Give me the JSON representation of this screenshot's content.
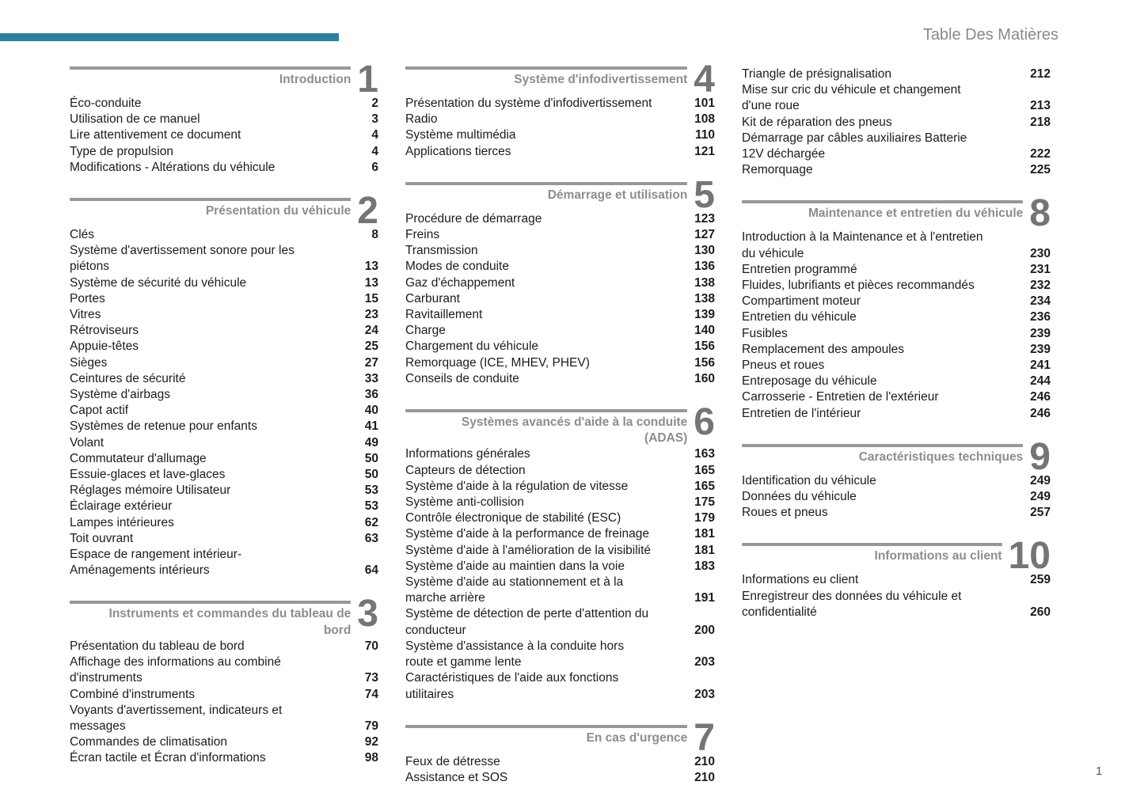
{
  "page": {
    "header_title": "Table Des Matières",
    "page_number": "1",
    "accent_color": "#2d7f9b",
    "section_rule_color": "#989898",
    "section_title_color": "#8d8d8d",
    "text_color": "#1c1c1c"
  },
  "toc": {
    "columns": [
      {
        "blocks": [
          {
            "number": "1",
            "title": "Introduction",
            "entries": [
              {
                "label": "Éco-conduite",
                "page": "2"
              },
              {
                "label": "Utilisation de ce manuel",
                "page": "3"
              },
              {
                "label": "Lire attentivement ce document",
                "page": "4"
              },
              {
                "label": "Type de propulsion",
                "page": "4"
              },
              {
                "label": "Modifications - Altérations du véhicule",
                "page": "6"
              }
            ]
          },
          {
            "number": "2",
            "title": "Présentation du véhicule",
            "entries": [
              {
                "label": "Clés",
                "page": "8"
              },
              {
                "label": "Système d'avertissement sonore pour les\npiétons",
                "page": "13"
              },
              {
                "label": "Système de sécurité du véhicule",
                "page": "13"
              },
              {
                "label": "Portes",
                "page": "15"
              },
              {
                "label": "Vitres",
                "page": "23"
              },
              {
                "label": "Rétroviseurs",
                "page": "24"
              },
              {
                "label": "Appuie-têtes",
                "page": "25"
              },
              {
                "label": "Sièges",
                "page": "27"
              },
              {
                "label": "Ceintures de sécurité",
                "page": "33"
              },
              {
                "label": "Système d'airbags",
                "page": "36"
              },
              {
                "label": "Capot actif",
                "page": "40"
              },
              {
                "label": "Systèmes de retenue pour enfants",
                "page": "41"
              },
              {
                "label": "Volant",
                "page": "49"
              },
              {
                "label": "Commutateur d'allumage",
                "page": "50"
              },
              {
                "label": "Essuie-glaces et lave-glaces",
                "page": "50"
              },
              {
                "label": "Réglages mémoire Utilisateur",
                "page": "53"
              },
              {
                "label": "Éclairage extérieur",
                "page": "53"
              },
              {
                "label": "Lampes intérieures",
                "page": "62"
              },
              {
                "label": "Toit ouvrant",
                "page": "63"
              },
              {
                "label": "Espace de rangement intérieur-\nAménagements intérieurs",
                "page": "64"
              }
            ]
          },
          {
            "number": "3",
            "title": "Instruments et commandes du tableau de\nbord",
            "entries": [
              {
                "label": "Présentation du tableau de bord",
                "page": "70"
              },
              {
                "label": "Affichage des informations au combiné\nd'instruments",
                "page": "73"
              },
              {
                "label": "Combiné d'instruments",
                "page": "74"
              },
              {
                "label": "Voyants d'avertissement, indicateurs et\nmessages",
                "page": "79"
              },
              {
                "label": "Commandes de climatisation",
                "page": "92"
              },
              {
                "label": "Écran tactile et Écran d'informations",
                "page": "98"
              }
            ]
          }
        ]
      },
      {
        "blocks": [
          {
            "number": "4",
            "title": "Système d'infodivertissement",
            "entries": [
              {
                "label": "Présentation du système d'infodivertissement",
                "page": "101"
              },
              {
                "label": "Radio",
                "page": "108"
              },
              {
                "label": "Système multimédia",
                "page": "110"
              },
              {
                "label": "Applications tierces",
                "page": "121"
              }
            ]
          },
          {
            "number": "5",
            "title": "Démarrage et utilisation",
            "entries": [
              {
                "label": "Procédure de démarrage",
                "page": "123"
              },
              {
                "label": "Freins",
                "page": "127"
              },
              {
                "label": "Transmission",
                "page": "130"
              },
              {
                "label": "Modes de conduite",
                "page": "136"
              },
              {
                "label": "Gaz d'échappement",
                "page": "138"
              },
              {
                "label": "Carburant",
                "page": "138"
              },
              {
                "label": "Ravitaillement",
                "page": "139"
              },
              {
                "label": "Charge",
                "page": "140"
              },
              {
                "label": "Chargement du véhicule",
                "page": "156"
              },
              {
                "label": "Remorquage (ICE, MHEV, PHEV)",
                "page": "156"
              },
              {
                "label": "Conseils de conduite",
                "page": "160"
              }
            ]
          },
          {
            "number": "6",
            "title": "Systèmes avancés d'aide à la conduite\n(ADAS)",
            "entries": [
              {
                "label": "Informations générales",
                "page": "163"
              },
              {
                "label": "Capteurs de détection",
                "page": "165"
              },
              {
                "label": "Système d'aide à la régulation de vitesse",
                "page": "165"
              },
              {
                "label": "Système anti-collision",
                "page": "175"
              },
              {
                "label": "Contrôle électronique de stabilité (ESC)",
                "page": "179"
              },
              {
                "label": "Système d'aide à la performance de freinage",
                "page": "181"
              },
              {
                "label": "Système d'aide à l'amélioration de la visibilité",
                "page": "181"
              },
              {
                "label": "Système d'aide au maintien dans la voie",
                "page": "183"
              },
              {
                "label": "Système d'aide au stationnement et à la\nmarche arrière",
                "page": "191"
              },
              {
                "label": "Système de détection de perte d'attention du\nconducteur",
                "page": "200"
              },
              {
                "label": "Système d'assistance à la conduite hors\nroute et gamme lente",
                "page": "203"
              },
              {
                "label": "Caractéristiques de l'aide aux fonctions\nutilitaires",
                "page": "203"
              }
            ]
          },
          {
            "number": "7",
            "title": "En cas d'urgence",
            "entries": [
              {
                "label": "Feux de détresse",
                "page": "210"
              },
              {
                "label": "Assistance et SOS",
                "page": "210"
              }
            ]
          }
        ]
      },
      {
        "blocks": [
          {
            "number": "",
            "title": "",
            "entries": [
              {
                "label": "Triangle de présignalisation",
                "page": "212"
              },
              {
                "label": "Mise sur cric du véhicule et changement\nd'une roue",
                "page": "213"
              },
              {
                "label": "Kit de réparation des pneus",
                "page": "218"
              },
              {
                "label": "Démarrage par câbles auxiliaires Batterie\n12V déchargée",
                "page": "222"
              },
              {
                "label": "Remorquage",
                "page": "225"
              }
            ]
          },
          {
            "number": "8",
            "title": "Maintenance et entretien du véhicule",
            "entries": [
              {
                "label": "Introduction à la Maintenance et à l'entretien\ndu véhicule",
                "page": "230"
              },
              {
                "label": "Entretien programmé",
                "page": "231"
              },
              {
                "label": "Fluides, lubrifiants et pièces recommandés",
                "page": "232"
              },
              {
                "label": "Compartiment moteur",
                "page": "234"
              },
              {
                "label": "Entretien du véhicule",
                "page": "236"
              },
              {
                "label": "Fusibles",
                "page": "239"
              },
              {
                "label": "Remplacement des ampoules",
                "page": "239"
              },
              {
                "label": "Pneus et roues",
                "page": "241"
              },
              {
                "label": "Entreposage du véhicule",
                "page": "244"
              },
              {
                "label": "Carrosserie - Entretien de l'extérieur",
                "page": "246"
              },
              {
                "label": "Entretien de l'intérieur",
                "page": "246"
              }
            ]
          },
          {
            "number": "9",
            "title": "Caractéristiques techniques",
            "entries": [
              {
                "label": "Identification du véhicule",
                "page": "249"
              },
              {
                "label": "Données du véhicule",
                "page": "249"
              },
              {
                "label": "Roues et pneus",
                "page": "257"
              }
            ]
          },
          {
            "number": "10",
            "title": "Informations au client",
            "entries": [
              {
                "label": "Informations eu client",
                "page": "259"
              },
              {
                "label": "Enregistreur des données du véhicule et\nconfidentialité",
                "page": "260"
              }
            ]
          }
        ]
      }
    ]
  }
}
